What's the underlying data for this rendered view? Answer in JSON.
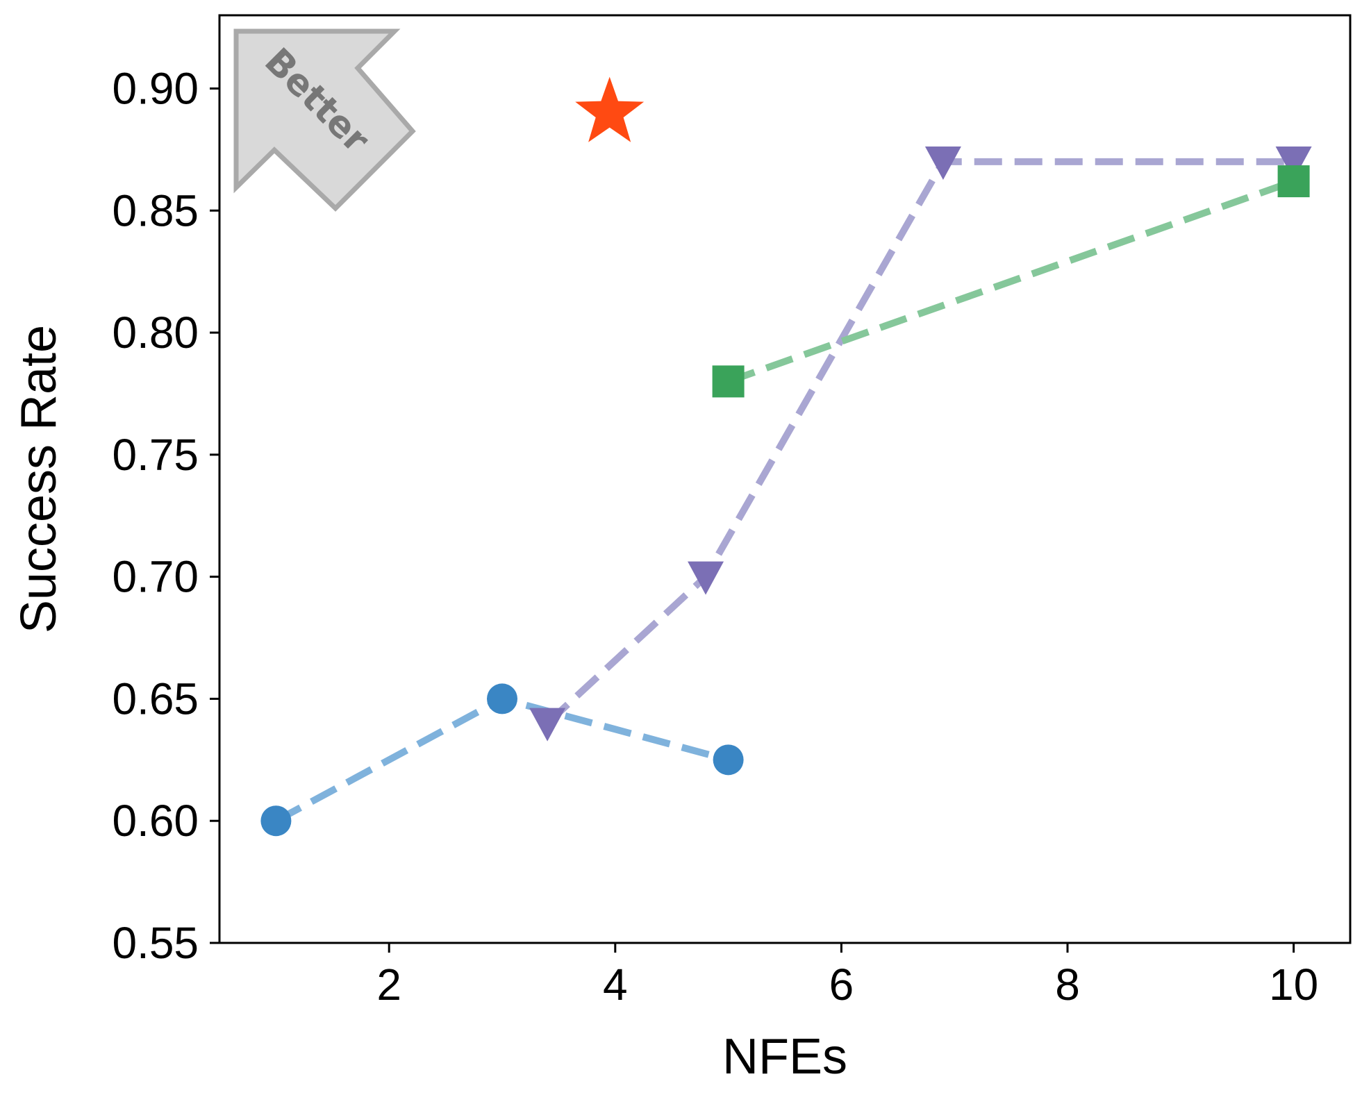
{
  "chart_data": {
    "type": "line",
    "xlabel": "NFEs",
    "ylabel": "Success Rate",
    "xlim": [
      0.5,
      10.5
    ],
    "ylim": [
      0.55,
      0.93
    ],
    "xticks": [
      2,
      4,
      6,
      8,
      10
    ],
    "yticks": [
      0.55,
      0.6,
      0.65,
      0.7,
      0.75,
      0.8,
      0.85,
      0.9
    ],
    "xtick_labels": [
      "2",
      "4",
      "6",
      "8",
      "10"
    ],
    "ytick_labels": [
      "0.55",
      "0.60",
      "0.65",
      "0.70",
      "0.75",
      "0.80",
      "0.85",
      "0.90"
    ],
    "grid": false,
    "series": [
      {
        "marker": "circle",
        "line_color": "#7fb2dc",
        "marker_color": "#3a86c4",
        "points": [
          {
            "x": 1,
            "y": 0.6
          },
          {
            "x": 3,
            "y": 0.65
          },
          {
            "x": 5,
            "y": 0.625
          }
        ]
      },
      {
        "marker": "triangle-down",
        "line_color": "#a9a6d2",
        "marker_color": "#7b6fb5",
        "points": [
          {
            "x": 3.4,
            "y": 0.64
          },
          {
            "x": 4.8,
            "y": 0.7
          },
          {
            "x": 6.9,
            "y": 0.87
          },
          {
            "x": 10,
            "y": 0.87
          }
        ]
      },
      {
        "marker": "square",
        "line_color": "#85c79a",
        "marker_color": "#3aa35a",
        "points": [
          {
            "x": 5,
            "y": 0.78
          },
          {
            "x": 10,
            "y": 0.862
          }
        ]
      },
      {
        "marker": "star",
        "line_color": "none",
        "marker_color": "#ff4a12",
        "points": [
          {
            "x": 3.95,
            "y": 0.89
          }
        ]
      }
    ],
    "annotation": {
      "text": "Better",
      "arrow_direction": "up-left",
      "placement": "top-left",
      "fill_color": "#d9d9d9",
      "stroke_color": "#a9a9a9"
    }
  }
}
